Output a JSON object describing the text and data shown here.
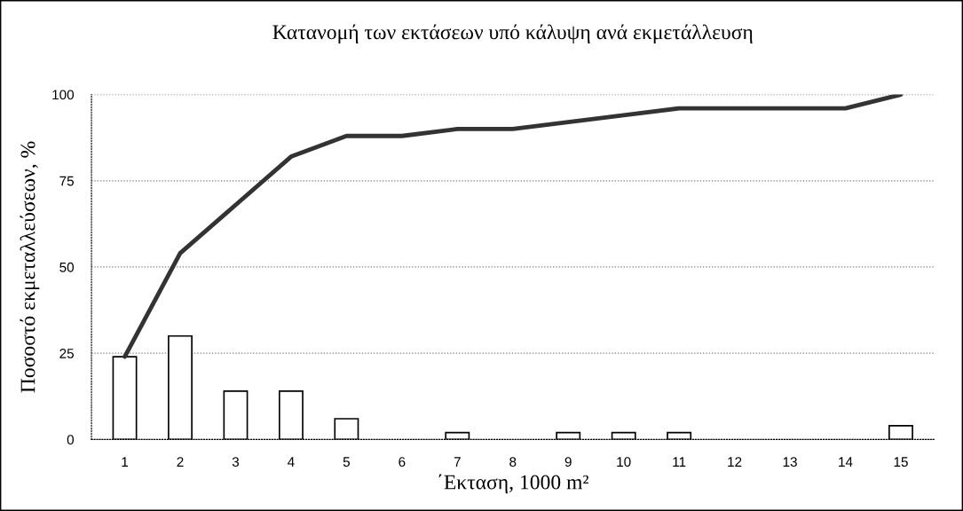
{
  "chart_data": {
    "type": "bar",
    "title": "Κατανομή των εκτάσεων υπό κάλυψη ανά εκμετάλλευση",
    "xlabel": "΄Εκταση, 1000 m²",
    "ylabel": "Ποσοστό εκμεταλλεύσεων, %",
    "categories": [
      "1",
      "2",
      "3",
      "4",
      "5",
      "6",
      "7",
      "8",
      "9",
      "10",
      "11",
      "12",
      "13",
      "14",
      "15"
    ],
    "series": [
      {
        "color": "#ffffff",
        "values": [
          24,
          30,
          14,
          14,
          6,
          0,
          2,
          0,
          2,
          2,
          2,
          0,
          0,
          0,
          4
        ]
      },
      {
        "type": "line",
        "color": "#333333",
        "values": [
          24,
          54,
          68,
          82,
          88,
          88,
          90,
          90,
          92,
          94,
          96,
          96,
          96,
          96,
          100
        ]
      }
    ],
    "ylim": [
      0,
      100
    ],
    "yticks": [
      0,
      25,
      50,
      75,
      100
    ],
    "grid": "y",
    "marker": "none",
    "line_style": "solid"
  }
}
